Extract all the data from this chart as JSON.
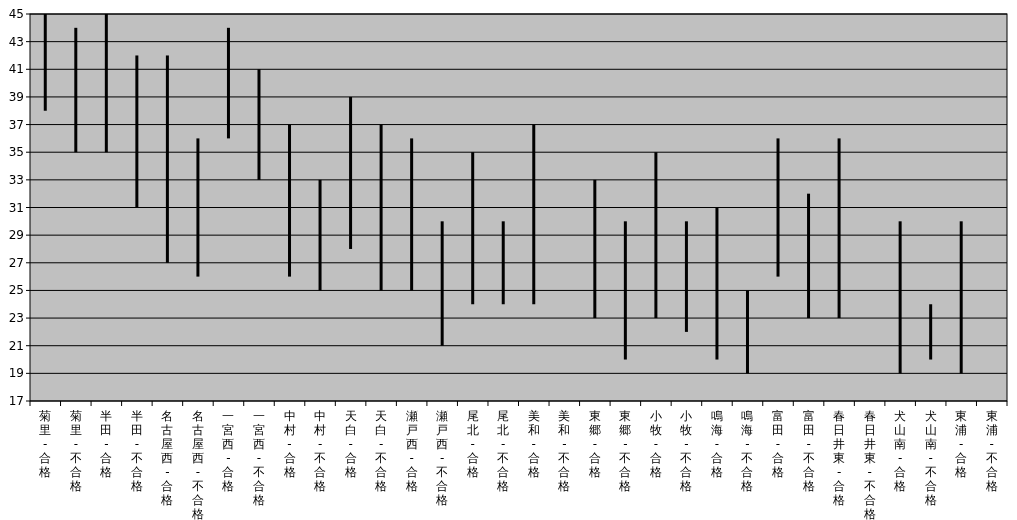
{
  "chart_data": {
    "type": "bar",
    "categories": [
      "菊里-合格",
      "菊里-不合格",
      "半田-合格",
      "半田-不合格",
      "名古屋西-合格",
      "名古屋西-不合格",
      "一宮西-合格",
      "一宮西-不合格",
      "中村-合格",
      "中村-不合格",
      "天白-合格",
      "天白-不合格",
      "瀬戸西-合格",
      "瀬戸西-不合格",
      "尾北-合格",
      "尾北-不合格",
      "美和-合格",
      "美和-不合格",
      "東郷-合格",
      "東郷-不合格",
      "小牧-合格",
      "小牧-不合格",
      "鳴海-合格",
      "鳴海-不合格",
      "富田-合格",
      "富田-不合格",
      "春日井東-合格",
      "春日井東-不合格",
      "犬山南-合格",
      "犬山南-不合格",
      "東浦-合格",
      "東浦-不合格"
    ],
    "base": [
      38,
      35,
      35,
      31,
      27,
      26,
      36,
      33,
      26,
      25,
      28,
      25,
      25,
      21,
      24,
      24,
      24,
      null,
      23,
      20,
      23,
      22,
      20,
      19,
      26,
      23,
      23,
      null,
      19,
      20,
      19,
      null
    ],
    "values": [
      7,
      9,
      10,
      11,
      15,
      10,
      8,
      8,
      11,
      8,
      11,
      12,
      11,
      9,
      11,
      6,
      13,
      null,
      10,
      10,
      12,
      8,
      11,
      6,
      10,
      9,
      13,
      null,
      11,
      4,
      11,
      null
    ],
    "color": "#000000",
    "ylim": [
      17,
      45
    ],
    "yticks": [
      17,
      19,
      21,
      23,
      25,
      27,
      29,
      31,
      33,
      35,
      37,
      39,
      41,
      43,
      45
    ],
    "grid": "y"
  }
}
